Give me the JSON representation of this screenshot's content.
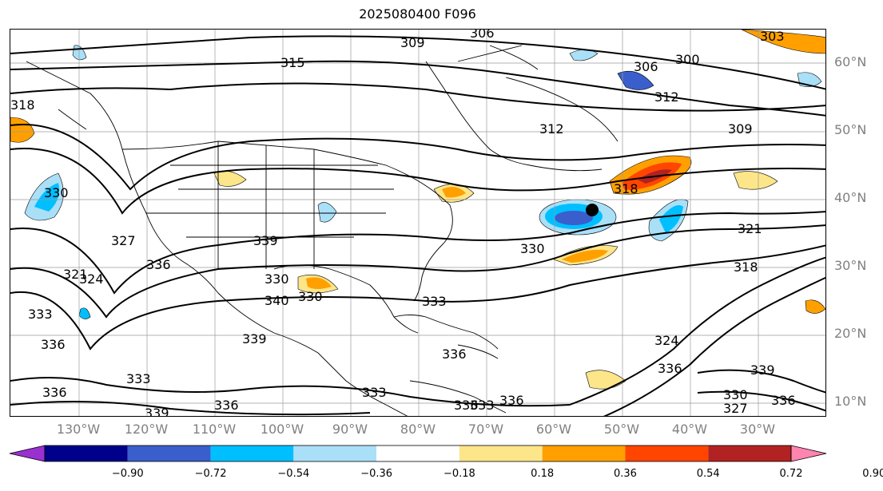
{
  "title": "2025080400 F096",
  "lat_labels": [
    "60°N",
    "50°N",
    "40°N",
    "30°N",
    "20°N",
    "10°N"
  ],
  "lon_labels": [
    "130°W",
    "120°W",
    "110°W",
    "100°W",
    "90°W",
    "80°W",
    "70°W",
    "60°W",
    "50°W",
    "40°W",
    "30°W"
  ],
  "colorbar": {
    "ticks": [
      "−0.90",
      "−0.72",
      "−0.54",
      "−0.36",
      "−0.18",
      "0.18",
      "0.36",
      "0.54",
      "0.72",
      "0.90"
    ],
    "colors": [
      "#9b30d0",
      "#00008b",
      "#3a5fcd",
      "#00bfff",
      "#aadff8",
      "#ffffff",
      "#fde58a",
      "#ffa000",
      "#ff4500",
      "#b22222",
      "#ff85b0"
    ]
  },
  "contour_labels": [
    "315",
    "309",
    "306",
    "303",
    "300",
    "306",
    "312",
    "312",
    "309",
    "318",
    "330",
    "318",
    "321",
    "318",
    "330",
    "327",
    "339",
    "336",
    "321",
    "324",
    "330",
    "340",
    "330",
    "333",
    "336",
    "333",
    "339",
    "333",
    "336",
    "336",
    "330",
    "327",
    "336",
    "324",
    "336",
    "339",
    "333",
    "333",
    "336",
    "336",
    "339",
    "336"
  ],
  "marker": "filled-black-dot"
}
